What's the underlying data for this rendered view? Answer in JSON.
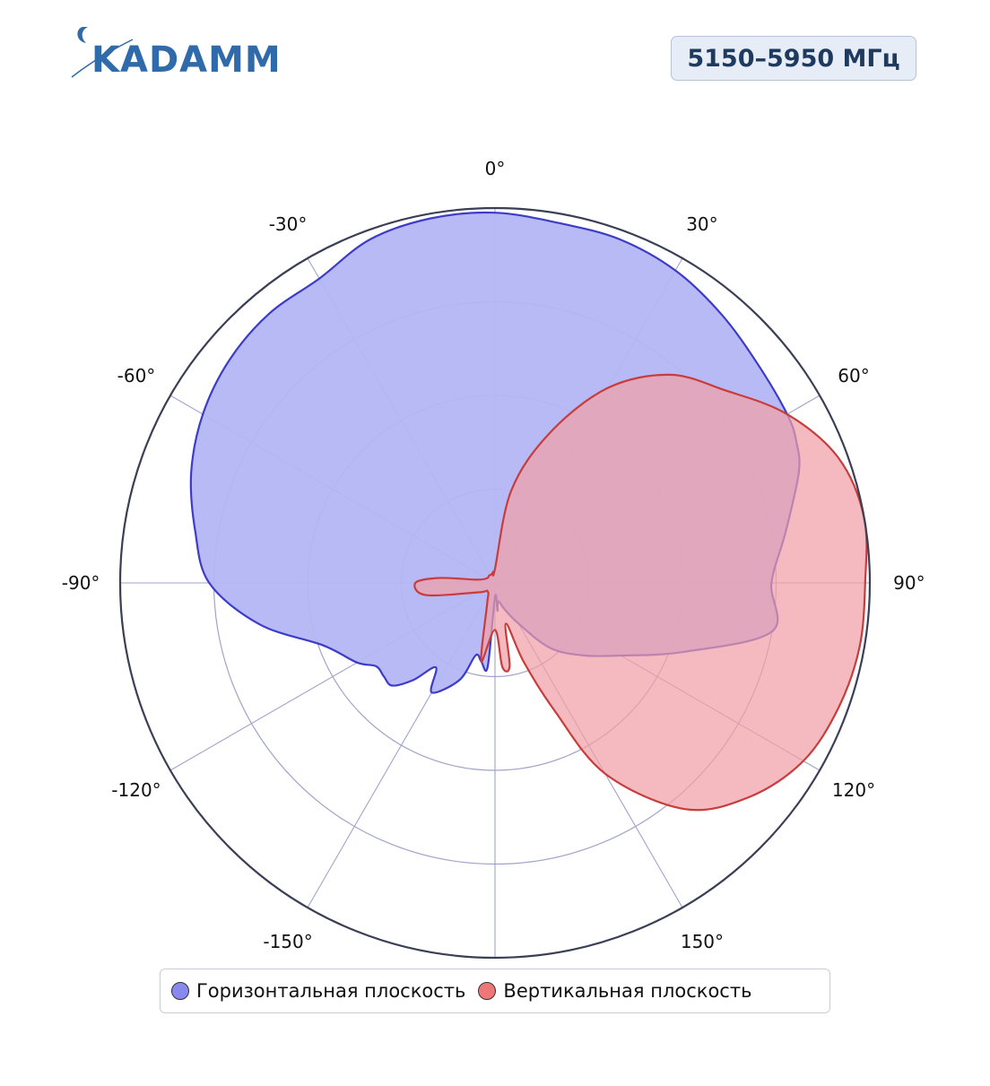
{
  "logo": {
    "text": "KADAMM"
  },
  "badge": {
    "frequency": "5150–5950 МГц"
  },
  "legend": {
    "items": [
      {
        "label": "Горизонтальная плоскость",
        "color": "#8888ee"
      },
      {
        "label": "Вертикальная плоскость",
        "color": "#ee7777"
      }
    ]
  },
  "colors": {
    "horizontal_fill": "#b4b6f5",
    "horizontal_line": "#3c3cc8",
    "vertical_fill": "#f0a0a6",
    "vertical_line": "#c83c3c",
    "grid": "#a0a4c8",
    "outer_circle": "#3a3f55"
  },
  "chart_data": {
    "type": "polar",
    "angle_ticks": [
      "0°",
      "30°",
      "60°",
      "90°",
      "120°",
      "150°",
      "-150°",
      "-120°",
      "-90°",
      "-60°",
      "-30°"
    ],
    "angle_tick_values": [
      0,
      30,
      60,
      90,
      120,
      150,
      -150,
      -120,
      -90,
      -60,
      -30
    ],
    "radial_range": [
      0,
      4
    ],
    "radial_gridlines": [
      1,
      2,
      3,
      4
    ],
    "series": [
      {
        "name": "Горизонтальная плоскость",
        "angles": [
          0,
          10,
          20,
          30,
          40,
          50,
          60,
          65,
          70,
          80,
          90,
          100,
          110,
          120,
          130,
          140,
          150,
          160,
          170,
          175,
          180,
          -175,
          -170,
          -165,
          -160,
          -150,
          -145,
          -140,
          -135,
          -130,
          -125,
          -120,
          -110,
          -100,
          -90,
          -80,
          -70,
          -60,
          -50,
          -40,
          -30,
          -20,
          -10
        ],
        "values": [
          3.95,
          3.9,
          3.9,
          3.85,
          3.75,
          3.65,
          3.6,
          3.55,
          3.45,
          3.15,
          2.95,
          3.0,
          2.15,
          1.55,
          1.2,
          0.9,
          0.5,
          0.3,
          0.2,
          0.3,
          0.15,
          0.9,
          0.85,
          0.8,
          1.1,
          1.35,
          1.1,
          1.35,
          1.55,
          1.55,
          1.55,
          1.7,
          1.95,
          2.55,
          3.05,
          3.25,
          3.45,
          3.6,
          3.7,
          3.75,
          3.75,
          3.9,
          3.95
        ]
      },
      {
        "name": "Вертикальная плоскость",
        "angles": [
          0,
          10,
          20,
          30,
          40,
          50,
          60,
          70,
          80,
          90,
          100,
          110,
          120,
          130,
          140,
          150,
          155,
          160,
          165,
          170,
          175,
          180,
          -170,
          -160,
          -140,
          -120,
          -100,
          -90,
          -85,
          -80,
          -60,
          -40,
          -20,
          -10
        ],
        "values": [
          0.15,
          1.0,
          1.7,
          2.4,
          2.9,
          3.2,
          3.6,
          3.9,
          4.0,
          3.95,
          3.95,
          3.9,
          3.8,
          3.55,
          3.15,
          2.35,
          1.5,
          0.9,
          0.45,
          0.9,
          0.9,
          0.5,
          0.85,
          0.25,
          0.12,
          0.2,
          0.75,
          0.85,
          0.6,
          0.2,
          0.1,
          0.1,
          0.1,
          0.12
        ]
      }
    ]
  }
}
